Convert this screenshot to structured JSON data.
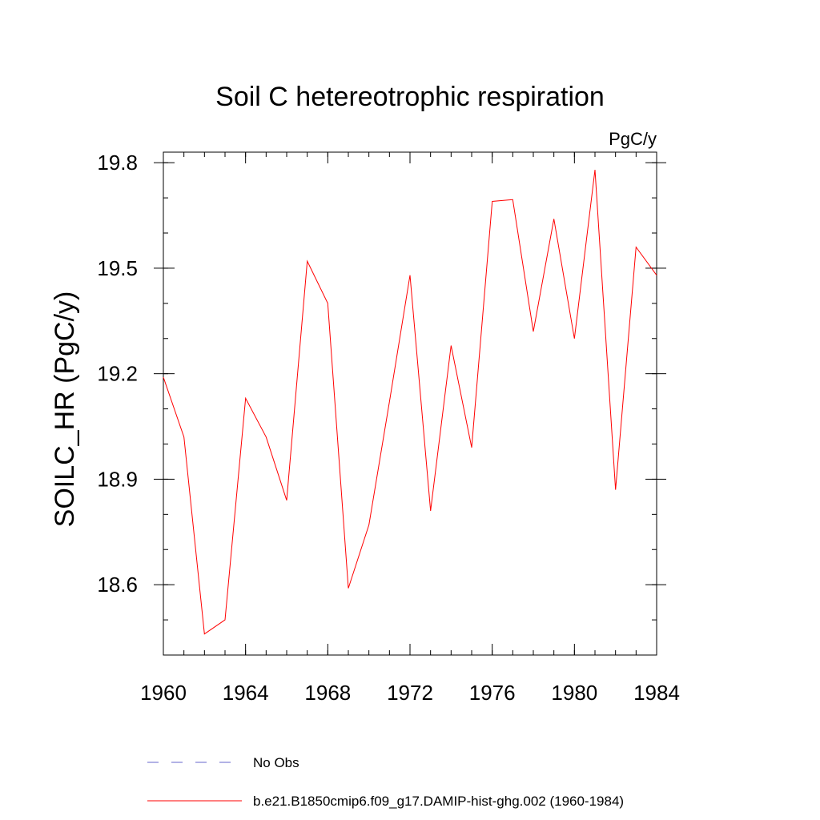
{
  "chart_data": {
    "type": "line",
    "title": "Soil C hetereotrophic respiration",
    "units_label": "PgC/y",
    "xlabel": "",
    "ylabel": "SOILC_HR  (PgC/y)",
    "xlim": [
      1960,
      1984
    ],
    "ylim": [
      18.4,
      19.83
    ],
    "x_ticks": [
      1960,
      1964,
      1968,
      1972,
      1976,
      1980,
      1984
    ],
    "y_ticks": [
      18.6,
      18.9,
      19.2,
      19.5,
      19.8
    ],
    "x_minor_step": 1,
    "y_minor_step": 0.1,
    "grid": false,
    "legend_position": "bottom",
    "series": [
      {
        "name": "No Obs",
        "color": "#6666cc",
        "style": "dashed",
        "x": [],
        "values": []
      },
      {
        "name": "b.e21.B1850cmip6.f09_g17.DAMIP-hist-ghg.002 (1960-1984)",
        "color": "#ff0000",
        "style": "solid",
        "x": [
          1960,
          1961,
          1962,
          1963,
          1964,
          1965,
          1966,
          1967,
          1968,
          1969,
          1970,
          1971,
          1972,
          1973,
          1974,
          1975,
          1976,
          1977,
          1978,
          1979,
          1980,
          1981,
          1982,
          1983,
          1984
        ],
        "values": [
          19.19,
          19.02,
          18.46,
          18.5,
          19.13,
          19.02,
          18.84,
          19.52,
          19.4,
          18.59,
          18.77,
          19.12,
          19.48,
          18.81,
          19.28,
          18.99,
          19.69,
          19.695,
          19.32,
          19.64,
          19.3,
          19.78,
          18.87,
          19.56,
          19.48
        ]
      }
    ]
  }
}
